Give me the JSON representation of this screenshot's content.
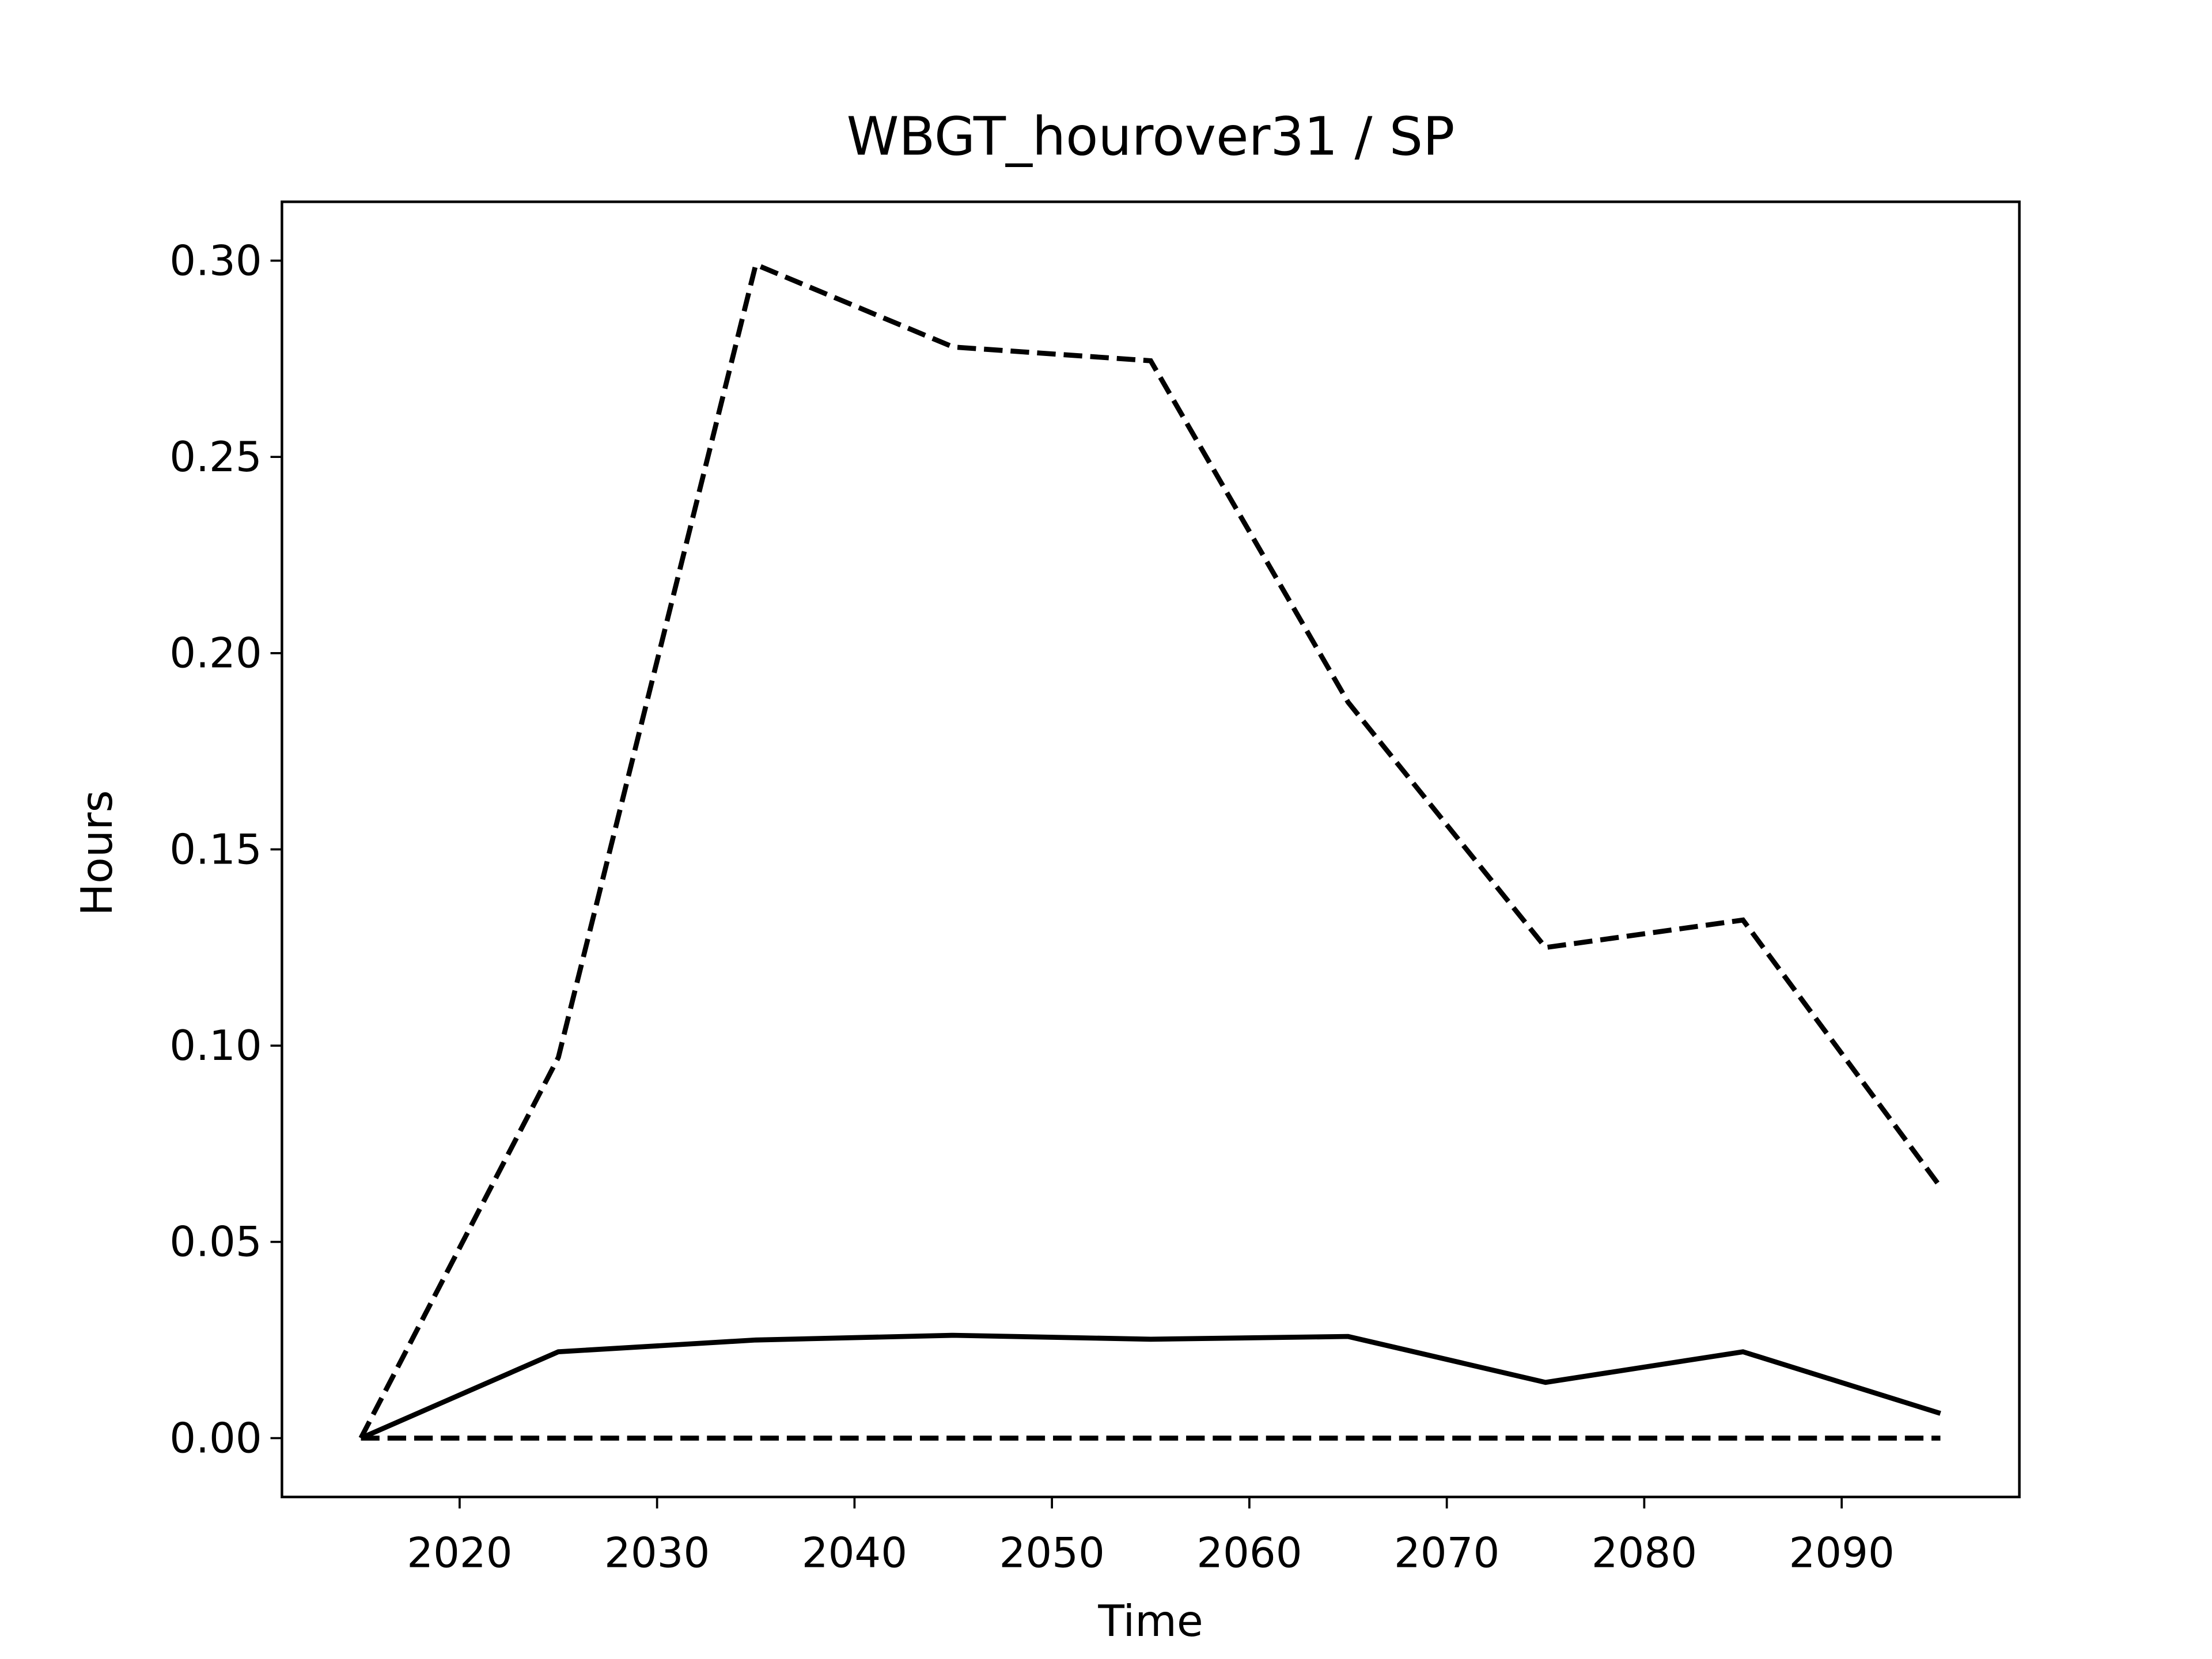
{
  "chart_data": {
    "type": "line",
    "title": "WBGT_hourover31 / SP",
    "x_label": "Time",
    "y_label": "Hours",
    "x": [
      2015,
      2025,
      2035,
      2045,
      2055,
      2065,
      2075,
      2085,
      2095
    ],
    "series": [
      {
        "color": "#000000",
        "linestyle": "solid",
        "values": [
          0,
          0.022,
          0.025,
          0.0262,
          0.0252,
          0.0259,
          0.0142,
          0.022,
          0.0063
        ]
      },
      {
        "color": "#000000",
        "linestyle": "dashed",
        "values": [
          0,
          0.097,
          0.299,
          0.278,
          0.2745,
          0.1875,
          0.125,
          0.132,
          0.064
        ]
      },
      {
        "color": "#000000",
        "linestyle": "dashed",
        "values": [
          0,
          0,
          0,
          0,
          0,
          0,
          0,
          0,
          0
        ]
      }
    ],
    "xlim": [
      2011,
      2099
    ],
    "xticks": [
      2020,
      2030,
      2040,
      2050,
      2060,
      2070,
      2080,
      2090
    ],
    "ylim": [
      -0.015,
      0.315
    ],
    "yticks": [
      {
        "value": 0,
        "label": "0.00"
      },
      {
        "value": 0.05,
        "label": "0.05"
      },
      {
        "value": 0.1,
        "label": "0.10"
      },
      {
        "value": 0.15,
        "label": "0.15"
      },
      {
        "value": 0.2,
        "label": "0.20"
      },
      {
        "value": 0.25,
        "label": "0.25"
      },
      {
        "value": 0.3,
        "label": "0.30"
      }
    ],
    "grid": false
  }
}
